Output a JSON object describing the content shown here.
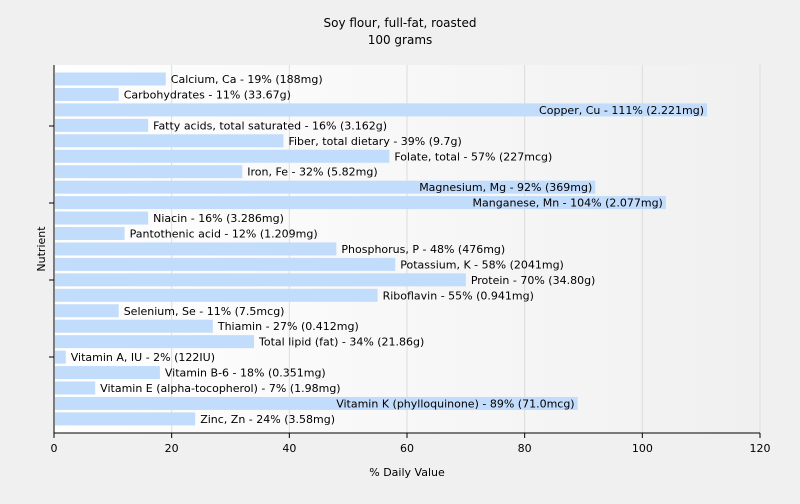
{
  "chart_data": {
    "type": "bar",
    "orientation": "horizontal",
    "title": "Soy flour, full-fat, roasted",
    "subtitle": "100 grams",
    "xlabel": "% Daily Value",
    "ylabel": "Nutrient",
    "xlim": [
      0,
      120
    ],
    "xticks": [
      0,
      20,
      40,
      60,
      80,
      100,
      120
    ],
    "grid": true,
    "bar_color": "#c2dcfc",
    "categories": [
      "Calcium, Ca",
      "Carbohydrates",
      "Copper, Cu",
      "Fatty acids, total saturated",
      "Fiber, total dietary",
      "Folate, total",
      "Iron, Fe",
      "Magnesium, Mg",
      "Manganese, Mn",
      "Niacin",
      "Pantothenic acid",
      "Phosphorus, P",
      "Potassium, K",
      "Protein",
      "Riboflavin",
      "Selenium, Se",
      "Thiamin",
      "Total lipid (fat)",
      "Vitamin A, IU",
      "Vitamin B-6",
      "Vitamin E (alpha-tocopherol)",
      "Vitamin K (phylloquinone)",
      "Zinc, Zn"
    ],
    "values": [
      19,
      11,
      111,
      16,
      39,
      57,
      32,
      92,
      104,
      16,
      12,
      48,
      58,
      70,
      55,
      11,
      27,
      34,
      2,
      18,
      7,
      89,
      24
    ],
    "amounts": [
      "188mg",
      "33.67g",
      "2.221mg",
      "3.162g",
      "9.7g",
      "227mcg",
      "5.82mg",
      "369mg",
      "2.077mg",
      "3.286mg",
      "1.209mg",
      "476mg",
      "2041mg",
      "34.80g",
      "0.941mg",
      "7.5mcg",
      "0.412mg",
      "21.86g",
      "122IU",
      "0.351mg",
      "1.98mg",
      "71.0mcg",
      "3.58mg"
    ],
    "data_labels": [
      "Calcium, Ca - 19% (188mg)",
      "Carbohydrates - 11% (33.67g)",
      "Copper, Cu - 111% (2.221mg)",
      "Fatty acids, total saturated - 16% (3.162g)",
      "Fiber, total dietary - 39% (9.7g)",
      "Folate, total - 57% (227mcg)",
      "Iron, Fe - 32% (5.82mg)",
      "Magnesium, Mg - 92% (369mg)",
      "Manganese, Mn - 104% (2.077mg)",
      "Niacin - 16% (3.286mg)",
      "Pantothenic acid - 12% (1.209mg)",
      "Phosphorus, P - 48% (476mg)",
      "Potassium, K - 58% (2041mg)",
      "Protein - 70% (34.80g)",
      "Riboflavin - 55% (0.941mg)",
      "Selenium, Se - 11% (7.5mcg)",
      "Thiamin - 27% (0.412mg)",
      "Total lipid (fat) - 34% (21.86g)",
      "Vitamin A, IU - 2% (122IU)",
      "Vitamin B-6 - 18% (0.351mg)",
      "Vitamin E (alpha-tocopherol) - 7% (1.98mg)",
      "Vitamin K (phylloquinone) - 89% (71.0mcg)",
      "Zinc, Zn - 24% (3.58mg)"
    ]
  }
}
